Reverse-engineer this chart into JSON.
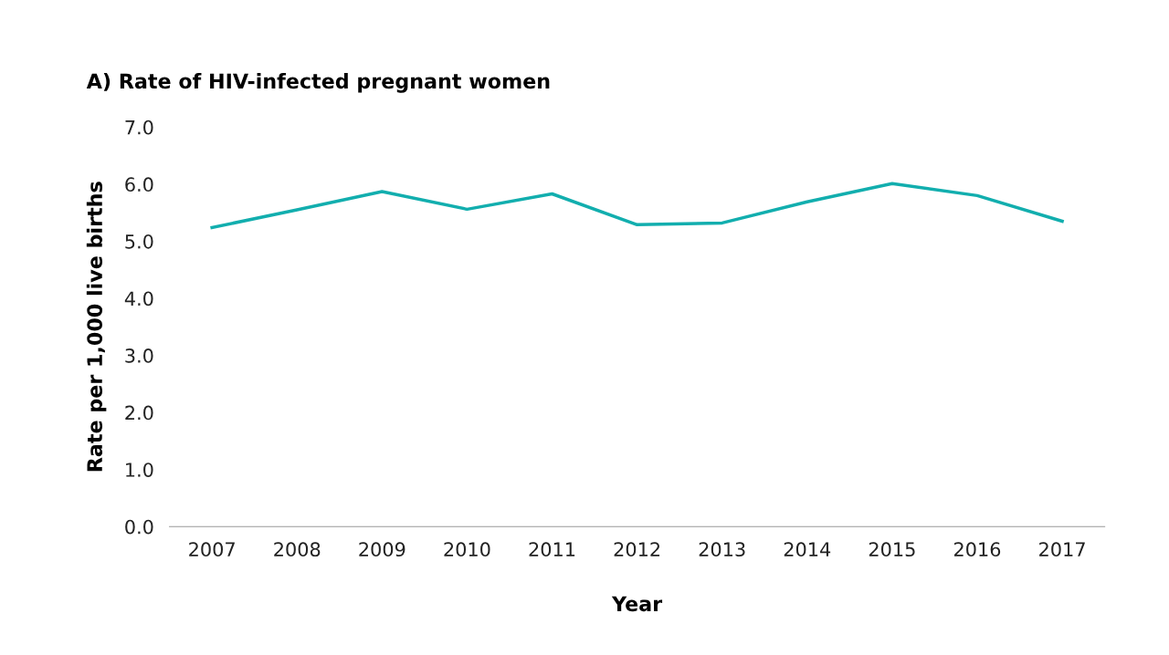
{
  "chart_data": {
    "type": "line",
    "title": "A) Rate of HIV-infected pregnant women",
    "xlabel": "Year",
    "ylabel": "Rate per 1,000 live births",
    "categories": [
      "2007",
      "2008",
      "2009",
      "2010",
      "2011",
      "2012",
      "2013",
      "2014",
      "2015",
      "2016",
      "2017"
    ],
    "series": [
      {
        "color": "#12aeae",
        "values": [
          5.24,
          5.55,
          5.87,
          5.56,
          5.83,
          5.29,
          5.32,
          5.69,
          6.01,
          5.8,
          5.35
        ]
      }
    ],
    "ylim": [
      0,
      7
    ],
    "yticks": [
      {
        "value": 0,
        "label": "0.0"
      },
      {
        "value": 1,
        "label": "1.0"
      },
      {
        "value": 2,
        "label": "2.0"
      },
      {
        "value": 3,
        "label": "3.0"
      },
      {
        "value": 4,
        "label": "4.0"
      },
      {
        "value": 5,
        "label": "5.0"
      },
      {
        "value": 6,
        "label": "6.0"
      },
      {
        "value": 7,
        "label": "7.0"
      }
    ],
    "grid": false,
    "legend": false,
    "marker": "none",
    "line_style": "solid"
  }
}
